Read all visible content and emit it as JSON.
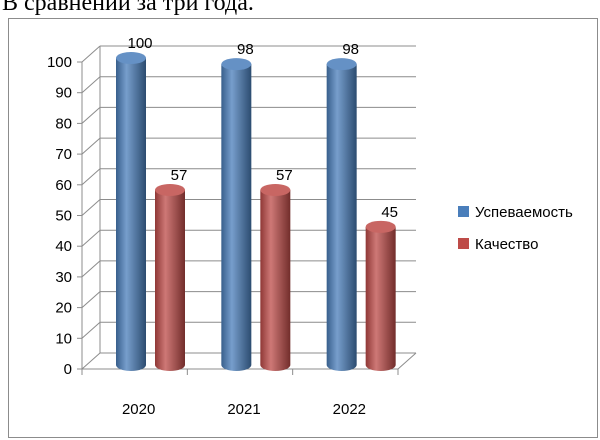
{
  "header": {
    "title": "В сравнении за три года."
  },
  "colors": {
    "series_1": "#4a7ebb",
    "series_2": "#be4b48",
    "grid": "#8c8c8c",
    "frame": "#8c8c8c"
  },
  "chart_data": {
    "type": "bar",
    "style": "3d-cylinder",
    "title": "",
    "xlabel": "",
    "ylabel": "",
    "categories": [
      "2020",
      "2021",
      "2022"
    ],
    "series": [
      {
        "name": "Успеваемость",
        "values": [
          100,
          98,
          98
        ]
      },
      {
        "name": "Качество",
        "values": [
          57,
          57,
          45
        ]
      }
    ],
    "ylim": [
      0,
      100
    ],
    "yticks": [
      0,
      10,
      20,
      30,
      40,
      50,
      60,
      70,
      80,
      90,
      100
    ],
    "grid": true,
    "legend": "right",
    "data_labels": true
  }
}
